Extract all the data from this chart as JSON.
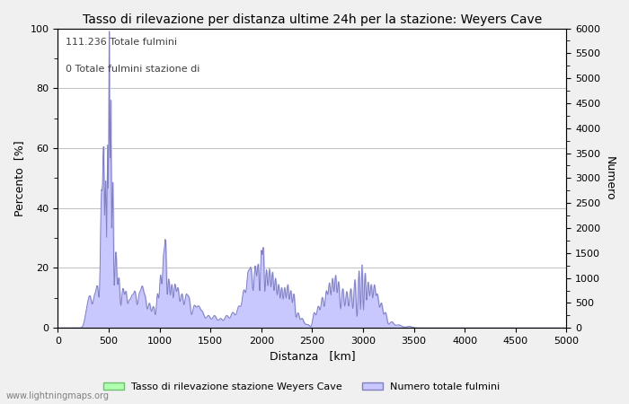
{
  "title": "Tasso di rilevazione per distanza ultime 24h per la stazione: Weyers Cave",
  "xlabel": "Distanza   [km]",
  "ylabel_left": "Percento  [%]",
  "ylabel_right": "Numero",
  "annotation_line1": "111.236 Totale fulmini",
  "annotation_line2": "0 Totale fulmini stazione di",
  "xlim": [
    0,
    5000
  ],
  "ylim_left": [
    0,
    100
  ],
  "ylim_right": [
    0,
    6000
  ],
  "xticks": [
    0,
    500,
    1000,
    1500,
    2000,
    2500,
    3000,
    3500,
    4000,
    4500,
    5000
  ],
  "yticks_left": [
    0,
    20,
    40,
    60,
    80,
    100
  ],
  "yticks_right": [
    0,
    500,
    1000,
    1500,
    2000,
    2500,
    3000,
    3500,
    4000,
    4500,
    5000,
    5500,
    6000
  ],
  "legend_label_green": "Tasso di rilevazione stazione Weyers Cave",
  "legend_label_blue": "Numero totale fulmini",
  "watermark": "www.lightningmaps.org",
  "fill_color_blue": "#c8c8ff",
  "line_color_blue": "#8080c0",
  "fill_color_green": "#b0ffb0",
  "line_color_green": "#70c070",
  "background_color": "#f0f0f0",
  "plot_background": "#ffffff",
  "grid_color": "#c0c0c0",
  "title_fontsize": 10,
  "label_fontsize": 9,
  "tick_fontsize": 8
}
